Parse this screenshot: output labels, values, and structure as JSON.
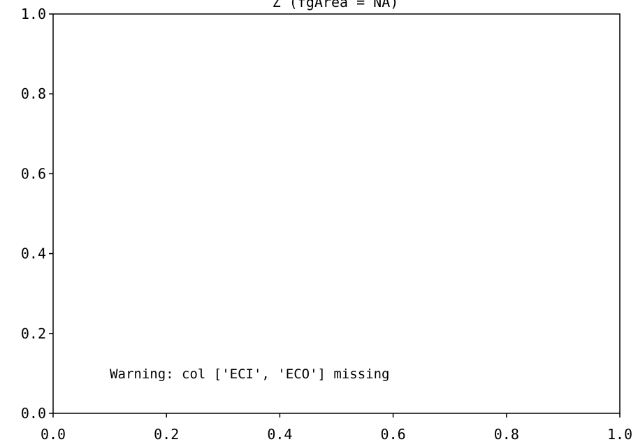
{
  "chart_data": {
    "type": "scatter",
    "title": "Z (fgArea = NA)",
    "xlabel": "",
    "ylabel": "",
    "xlim": [
      0.0,
      1.0
    ],
    "ylim": [
      0.0,
      1.0
    ],
    "xticks": [
      "0.0",
      "0.2",
      "0.4",
      "0.6",
      "0.8",
      "1.0"
    ],
    "yticks": [
      "0.0",
      "0.2",
      "0.4",
      "0.6",
      "0.8",
      "1.0"
    ],
    "grid": false,
    "series": [],
    "annotation": {
      "text": "Warning: col ['ECI', 'ECO'] missing",
      "x": 0.1,
      "y": 0.1
    }
  }
}
